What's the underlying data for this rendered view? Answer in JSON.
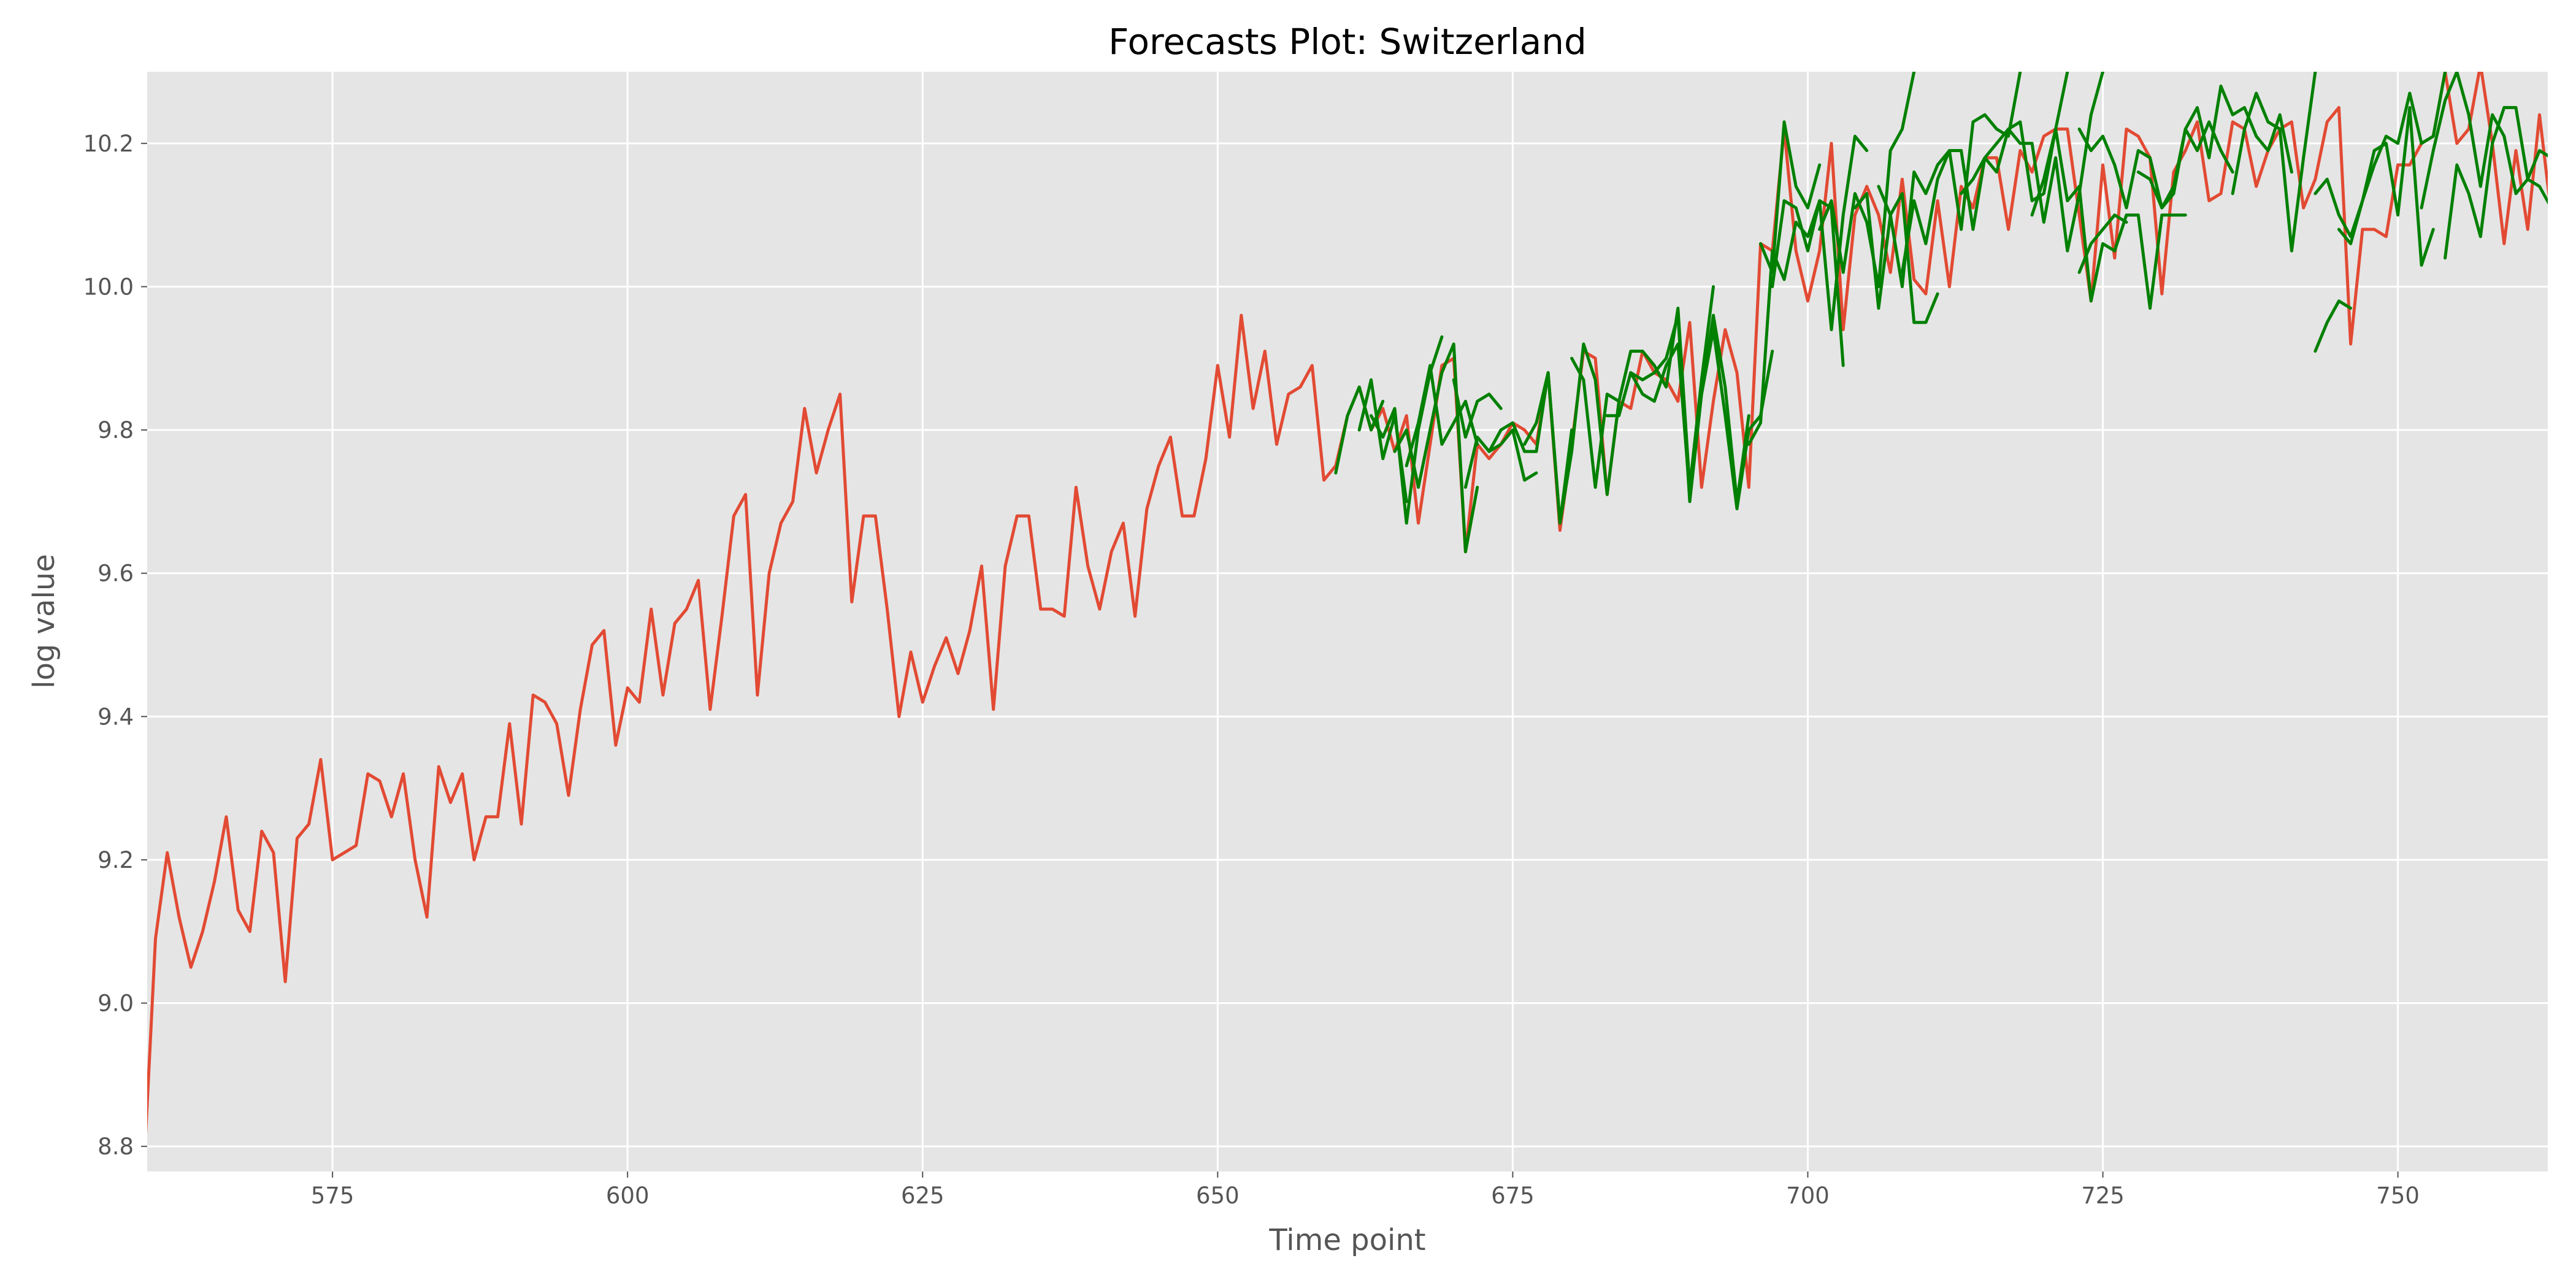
{
  "chart_data": {
    "type": "line",
    "title": "Forecasts Plot: Switzerland",
    "xlabel": "Time point",
    "ylabel": "log value",
    "xlim": [
      559.3,
      762.7
    ],
    "ylim": [
      8.765,
      10.3
    ],
    "x_ticks": [
      575,
      600,
      625,
      650,
      675,
      700,
      725,
      750
    ],
    "x_tick_labels": [
      "575",
      "600",
      "625",
      "650",
      "675",
      "700",
      "725",
      "750"
    ],
    "y_ticks": [
      8.8,
      9.0,
      9.2,
      9.4,
      9.6,
      9.8,
      10.0,
      10.2
    ],
    "y_tick_labels": [
      "8.8",
      "9.0",
      "9.2",
      "9.4",
      "9.6",
      "9.8",
      "10.0",
      "10.2"
    ],
    "grid": true,
    "background": "#e5e5e5",
    "colors": {
      "actual": "#e24a33",
      "forecast": "#008000"
    },
    "series": [
      {
        "x_start": 559,
        "values": [
          8.76,
          9.09,
          9.21,
          9.12,
          9.05,
          9.1,
          9.17,
          9.26,
          9.13,
          9.1,
          9.24,
          9.21,
          9.03,
          9.23,
          9.25,
          9.34,
          9.2,
          9.21,
          9.22,
          9.32,
          9.31,
          9.26,
          9.32,
          9.2,
          9.12,
          9.33,
          9.28,
          9.32,
          9.2,
          9.26,
          9.26,
          9.39,
          9.25,
          9.43,
          9.42,
          9.39,
          9.29,
          9.41,
          9.5,
          9.52,
          9.36,
          9.44,
          9.42,
          9.55,
          9.43,
          9.53,
          9.55,
          9.59,
          9.41,
          9.54,
          9.68,
          9.71,
          9.43,
          9.6,
          9.67,
          9.7,
          9.83,
          9.74,
          9.8,
          9.85,
          9.56,
          9.68,
          9.68,
          9.55,
          9.4,
          9.49,
          9.42,
          9.47,
          9.51,
          9.46,
          9.52,
          9.61,
          9.41,
          9.61,
          9.68,
          9.68,
          9.55,
          9.55,
          9.54,
          9.72,
          9.61,
          9.55,
          9.63,
          9.67,
          9.54,
          9.69,
          9.75,
          9.79,
          9.68,
          9.68,
          9.76,
          9.89,
          9.79,
          9.96,
          9.83,
          9.91,
          9.78,
          9.85,
          9.86,
          9.89,
          9.73,
          9.75,
          9.82,
          9.86,
          9.8,
          9.83,
          9.77,
          9.82,
          9.67,
          9.78,
          9.89,
          9.9,
          9.63,
          9.78,
          9.76,
          9.78,
          9.81,
          9.8,
          9.78,
          9.88,
          9.66,
          9.78,
          9.91,
          9.9,
          9.71,
          9.84,
          9.83,
          9.91,
          9.88,
          9.87,
          9.84,
          9.95,
          9.72,
          9.84,
          9.94,
          9.88,
          9.72,
          10.06,
          10.05,
          10.22,
          10.05,
          9.98,
          10.05,
          10.2,
          9.94,
          10.1,
          10.14,
          10.1,
          10.02,
          10.15,
          10.01,
          9.99,
          10.12,
          10.0,
          10.14,
          10.11,
          10.18,
          10.18,
          10.08,
          10.19,
          10.16,
          10.21,
          10.22,
          10.22,
          10.1,
          9.98,
          10.17,
          10.04,
          10.22,
          10.21,
          10.18,
          9.99,
          10.16,
          10.19,
          10.23,
          10.12,
          10.13,
          10.23,
          10.22,
          10.14,
          10.19,
          10.22,
          10.23,
          10.11,
          10.15,
          10.23,
          10.25,
          9.92,
          10.08,
          10.08,
          10.07,
          10.17,
          10.17,
          10.2,
          10.21,
          10.3,
          10.2,
          10.22,
          10.31,
          10.2,
          10.06,
          10.19,
          10.08,
          10.24,
          10.1,
          10.12,
          10.14,
          10.22
        ]
      },
      {
        "x_start": 660,
        "values": [
          9.74,
          9.82,
          9.86,
          9.8,
          9.84
        ]
      },
      {
        "x_start": 662,
        "values": [
          9.8,
          9.87,
          9.76,
          9.82,
          9.7
        ]
      },
      {
        "x_start": 663,
        "values": [
          9.82,
          9.79,
          9.83,
          9.67,
          9.8,
          9.88,
          9.93
        ]
      },
      {
        "x_start": 665,
        "values": [
          9.77,
          9.8,
          9.72,
          9.8,
          9.88,
          9.92,
          9.63,
          9.72
        ]
      },
      {
        "x_start": 666,
        "values": [
          9.75,
          9.81,
          9.89,
          9.78,
          9.81,
          9.84,
          9.78
        ]
      },
      {
        "x_start": 670,
        "values": [
          9.87,
          9.79,
          9.84,
          9.85,
          9.83
        ]
      },
      {
        "x_start": 671,
        "values": [
          9.72,
          9.79,
          9.77,
          9.78,
          9.8,
          9.73,
          9.74
        ]
      },
      {
        "x_start": 673,
        "values": [
          9.77,
          9.8,
          9.81,
          9.77,
          9.77,
          9.88,
          9.67,
          9.8
        ]
      },
      {
        "x_start": 676,
        "values": [
          9.78,
          9.81,
          9.88,
          9.67,
          9.77,
          9.92,
          9.87,
          9.71,
          9.84
        ]
      },
      {
        "x_start": 680,
        "values": [
          9.9,
          9.87,
          9.72,
          9.85,
          9.84,
          9.91,
          9.91,
          9.89,
          9.86,
          9.97,
          9.72,
          9.87,
          10.0
        ]
      },
      {
        "x_start": 683,
        "values": [
          9.82,
          9.82,
          9.88,
          9.85,
          9.84,
          9.89,
          9.92,
          9.71,
          9.86,
          9.95
        ]
      },
      {
        "x_start": 685,
        "values": [
          9.88,
          9.87,
          9.88,
          9.9,
          9.96,
          9.7,
          9.85,
          9.96,
          9.86,
          9.7,
          9.82
        ]
      },
      {
        "x_start": 691,
        "values": [
          9.85,
          9.94,
          9.82,
          9.69,
          9.8,
          9.82,
          9.91
        ]
      },
      {
        "x_start": 695,
        "values": [
          9.78,
          9.81,
          10.05,
          10.01,
          10.09,
          10.07,
          10.12,
          10.11,
          9.89
        ]
      },
      {
        "x_start": 696,
        "values": [
          10.06,
          10.02,
          10.23,
          10.14,
          10.11,
          10.17
        ]
      },
      {
        "x_start": 697,
        "values": [
          10.0,
          10.12,
          10.11,
          10.05,
          10.12,
          9.94,
          10.1,
          10.21,
          10.19
        ]
      },
      {
        "x_start": 701,
        "values": [
          10.08,
          10.12,
          10.02,
          10.13,
          10.09,
          10.0,
          10.19,
          10.22,
          10.3
        ]
      },
      {
        "x_start": 704,
        "values": [
          10.11,
          10.13,
          9.97,
          10.1,
          10.13,
          9.95,
          9.95,
          9.99
        ]
      },
      {
        "x_start": 706,
        "values": [
          10.14,
          10.1,
          10.0,
          10.16,
          10.13,
          10.17,
          10.19,
          10.08,
          10.23,
          10.24,
          10.22,
          10.21,
          10.3
        ]
      },
      {
        "x_start": 708,
        "values": [
          10.02,
          10.12,
          10.06,
          10.15,
          10.19,
          10.19,
          10.08,
          10.18,
          10.2,
          10.22,
          10.23,
          10.12,
          10.13,
          10.22,
          10.3
        ]
      },
      {
        "x_start": 713,
        "values": [
          10.13,
          10.15,
          10.18,
          10.16,
          10.22,
          10.2,
          10.2,
          10.09,
          10.18,
          10.05,
          10.13,
          10.24,
          10.3
        ]
      },
      {
        "x_start": 719,
        "values": [
          10.1,
          10.15,
          10.22,
          10.12,
          10.14,
          9.98,
          10.06,
          10.05,
          10.1,
          10.1,
          9.97,
          10.1,
          10.1,
          10.1
        ]
      },
      {
        "x_start": 723,
        "values": [
          10.02,
          10.06,
          10.08,
          10.1,
          10.09
        ]
      },
      {
        "x_start": 723,
        "values": [
          10.22,
          10.19,
          10.21,
          10.17,
          10.11,
          10.19,
          10.18,
          10.11,
          10.13,
          10.22,
          10.19,
          10.23,
          10.19,
          10.16
        ]
      },
      {
        "x_start": 728,
        "values": [
          10.16,
          10.15,
          10.11,
          10.14,
          10.22,
          10.25,
          10.18,
          10.28,
          10.24,
          10.25,
          10.21,
          10.19,
          10.24,
          10.16
        ]
      },
      {
        "x_start": 736,
        "values": [
          10.13,
          10.22,
          10.27,
          10.23,
          10.22,
          10.05,
          10.18,
          10.3
        ]
      },
      {
        "x_start": 743,
        "values": [
          9.91,
          9.95,
          9.98,
          9.97
        ]
      },
      {
        "x_start": 743,
        "values": [
          10.13,
          10.15,
          10.1,
          10.07,
          10.12,
          10.17,
          10.21,
          10.2,
          10.27,
          10.2,
          10.21,
          10.3
        ]
      },
      {
        "x_start": 745,
        "values": [
          10.08,
          10.06,
          10.12,
          10.19,
          10.2,
          10.1,
          10.25,
          10.03,
          10.08
        ]
      },
      {
        "x_start": 752,
        "values": [
          10.11,
          10.19,
          10.26,
          10.3,
          10.24,
          10.14,
          10.24,
          10.21,
          10.13,
          10.15,
          10.14,
          10.11,
          10.11,
          10.13,
          10.15
        ]
      },
      {
        "x_start": 754,
        "values": [
          10.04,
          10.17,
          10.13,
          10.07,
          10.2,
          10.25,
          10.25,
          10.15,
          10.19,
          10.18,
          10.23,
          10.09
        ]
      }
    ]
  }
}
